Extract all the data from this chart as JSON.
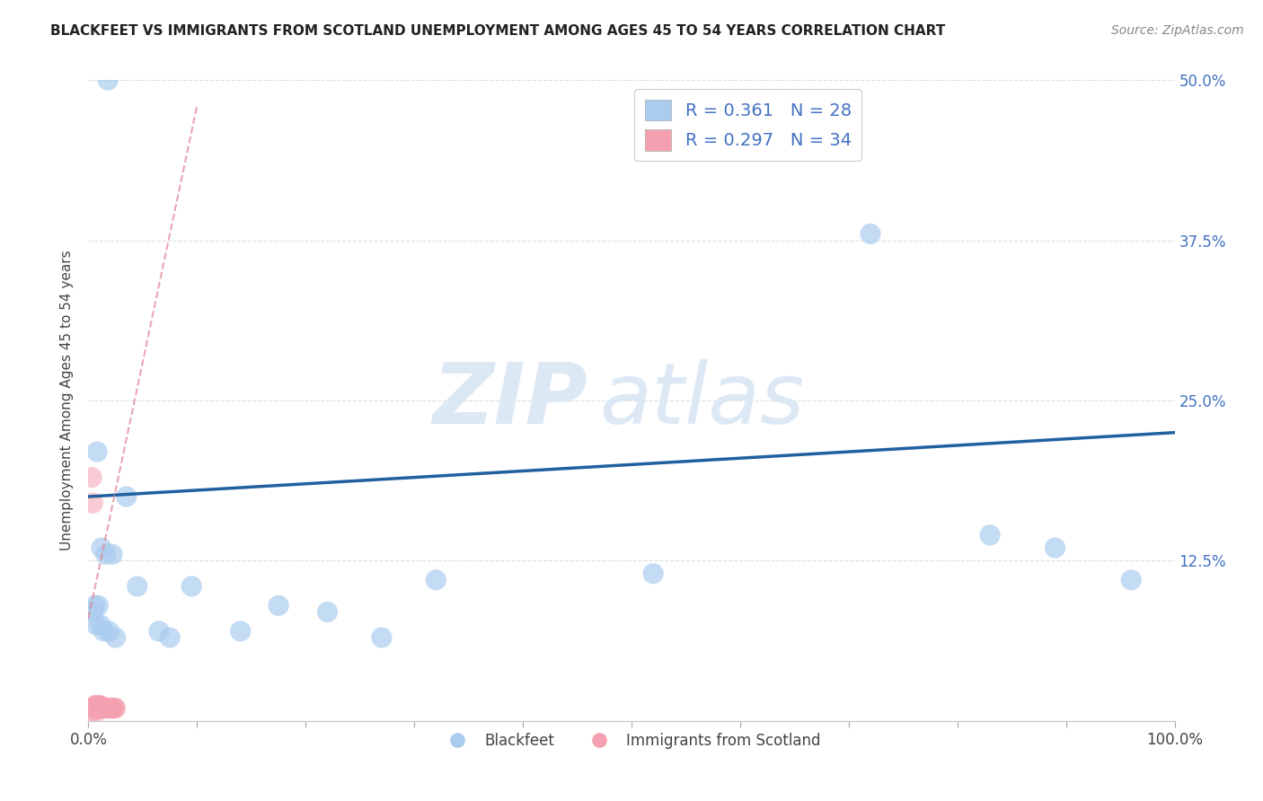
{
  "title": "BLACKFEET VS IMMIGRANTS FROM SCOTLAND UNEMPLOYMENT AMONG AGES 45 TO 54 YEARS CORRELATION CHART",
  "source": "Source: ZipAtlas.com",
  "ylabel": "Unemployment Among Ages 45 to 54 years",
  "xlim": [
    0,
    1.0
  ],
  "ylim": [
    0,
    0.5
  ],
  "blackfeet_x": [
    0.018,
    0.008,
    0.035,
    0.012,
    0.016,
    0.022,
    0.009,
    0.006,
    0.004,
    0.007,
    0.011,
    0.014,
    0.019,
    0.025,
    0.045,
    0.065,
    0.075,
    0.095,
    0.14,
    0.175,
    0.22,
    0.27,
    0.32,
    0.52,
    0.72,
    0.83,
    0.89,
    0.96
  ],
  "blackfeet_y": [
    0.5,
    0.21,
    0.175,
    0.135,
    0.13,
    0.13,
    0.09,
    0.09,
    0.085,
    0.075,
    0.075,
    0.07,
    0.07,
    0.065,
    0.105,
    0.07,
    0.065,
    0.105,
    0.07,
    0.09,
    0.085,
    0.065,
    0.11,
    0.115,
    0.38,
    0.145,
    0.135,
    0.11
  ],
  "scotland_x": [
    0.003,
    0.004,
    0.005,
    0.005,
    0.006,
    0.006,
    0.007,
    0.007,
    0.008,
    0.008,
    0.009,
    0.009,
    0.01,
    0.01,
    0.011,
    0.011,
    0.012,
    0.012,
    0.013,
    0.013,
    0.014,
    0.015,
    0.015,
    0.016,
    0.016,
    0.017,
    0.018,
    0.019,
    0.02,
    0.021,
    0.022,
    0.023,
    0.024,
    0.025
  ],
  "scotland_y": [
    0.19,
    0.17,
    0.005,
    0.008,
    0.01,
    0.012,
    0.01,
    0.012,
    0.01,
    0.012,
    0.01,
    0.012,
    0.01,
    0.012,
    0.01,
    0.012,
    0.01,
    0.01,
    0.01,
    0.01,
    0.01,
    0.01,
    0.01,
    0.01,
    0.01,
    0.01,
    0.01,
    0.01,
    0.01,
    0.01,
    0.01,
    0.01,
    0.01,
    0.01
  ],
  "blackfeet_color": "#aaccee",
  "scotland_color": "#f4a0b0",
  "trendline_blue_color": "#2060a0",
  "trendline_pink_color": "#e08090",
  "trendline_blue_x0": 0.0,
  "trendline_blue_y0": 0.175,
  "trendline_blue_x1": 1.0,
  "trendline_blue_y1": 0.225,
  "trendline_pink_x0": 0.0,
  "trendline_pink_y0": 0.08,
  "trendline_pink_x1": 0.1,
  "trendline_pink_y1": 0.48,
  "R_blackfeet": 0.361,
  "N_blackfeet": 28,
  "R_scotland": 0.297,
  "N_scotland": 34,
  "watermark_zip": "ZIP",
  "watermark_atlas": "atlas",
  "background_color": "#ffffff",
  "grid_color": "#cccccc"
}
